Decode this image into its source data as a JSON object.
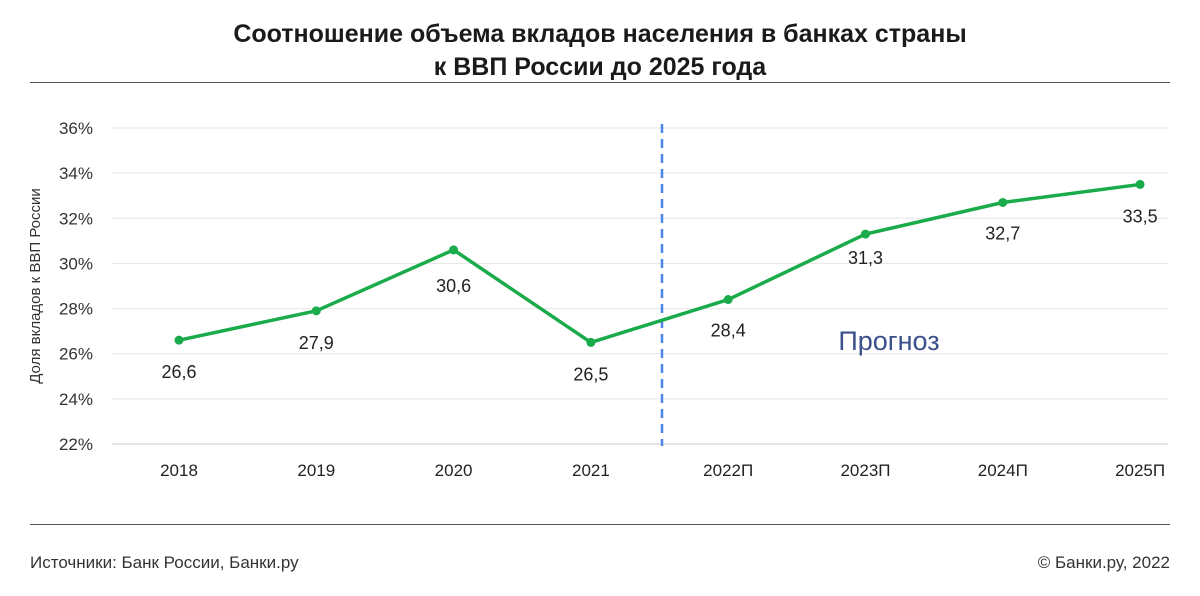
{
  "title_line1": "Соотношение объема вкладов населения в банках страны",
  "title_line2": "к ВВП России до 2025 года",
  "footer": {
    "sources": "Источники: Банк России, Банки.ру",
    "copyright": "© Банки.ру, 2022"
  },
  "chart_data": {
    "type": "line",
    "title": "Соотношение объема вкладов населения в банках страны к ВВП России до 2025 года",
    "ylabel": "Доля вкладов к ВВП России",
    "xlabel": "",
    "categories": [
      "2018",
      "2019",
      "2020",
      "2021",
      "2022П",
      "2023П",
      "2024П",
      "2025П"
    ],
    "values": [
      26.6,
      27.9,
      30.6,
      26.5,
      28.4,
      31.3,
      32.7,
      33.5
    ],
    "value_labels": [
      "26,6",
      "27,9",
      "30,6",
      "26,5",
      "28,4",
      "31,3",
      "32,7",
      "33,5"
    ],
    "yticks": [
      22,
      24,
      26,
      28,
      30,
      32,
      34,
      36
    ],
    "ytick_labels": [
      "22%",
      "24%",
      "26%",
      "28%",
      "30%",
      "32%",
      "34%",
      "36%"
    ],
    "ylim": [
      22,
      36
    ],
    "grid": true,
    "forecast_label": "Прогноз",
    "colors": {
      "line": "#1aab4b",
      "divider": "#4a86e8",
      "forecast_text": "#3b4f8a",
      "grid": "#e6e6e6"
    }
  }
}
